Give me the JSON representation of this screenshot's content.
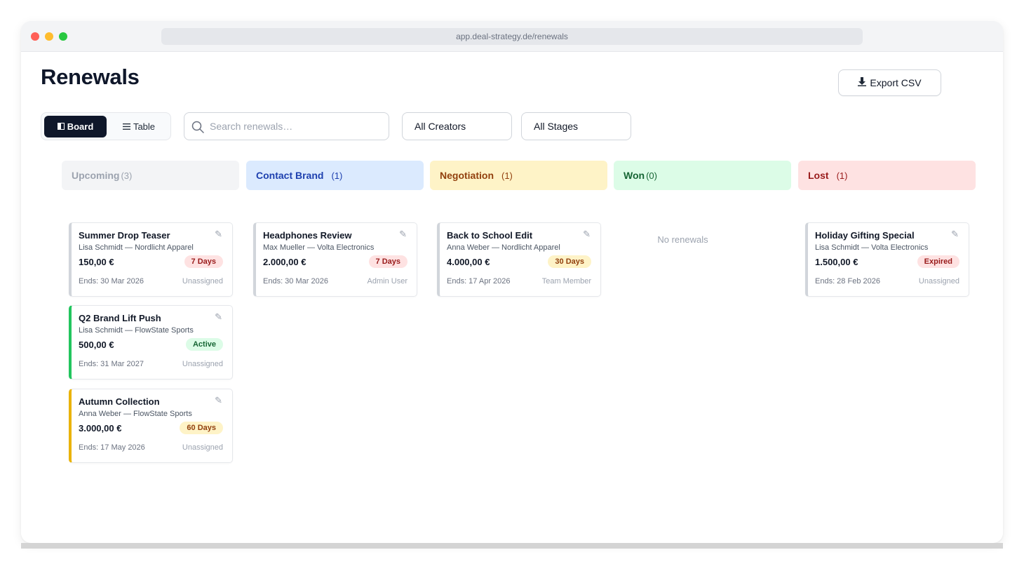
{
  "browser": {
    "url": "app.deal-strategy.de/renewals"
  },
  "header": {
    "title": "Renewals",
    "export_label": "Export CSV",
    "export_icon": "download-icon"
  },
  "view_toggle": {
    "board_label": "Board",
    "table_label": "Table",
    "active": "board"
  },
  "search": {
    "placeholder": "Search renewals…",
    "value": ""
  },
  "filters": {
    "creators": "All Creators",
    "stages": "All Stages"
  },
  "columns": [
    {
      "name": "Upcoming",
      "count": "(3)",
      "bg": "#f3f4f6",
      "color": "#9ca3af"
    },
    {
      "name": "Contact Brand",
      "count": "(1)",
      "bg": "#dbeafe",
      "color": "#1e40af"
    },
    {
      "name": "Negotiation",
      "count": "(1)",
      "bg": "#fef3c7",
      "color": "#92400e"
    },
    {
      "name": "Won",
      "count": "(0)",
      "bg": "#dcfce7",
      "color": "#166534",
      "empty_text": "No renewals"
    },
    {
      "name": "Lost",
      "count": "(1)",
      "bg": "#fee2e2",
      "color": "#991b1b"
    }
  ],
  "cards": [
    {
      "column": 0,
      "title": "Summer Drop Teaser",
      "sub": "Lisa Schmidt — Nordlicht Apparel",
      "amount": "150,00 €",
      "badge": "7 Days",
      "badge_bg": "#fee2e2",
      "badge_color": "#991b1b",
      "ends": "Ends: 30 Mar 2026",
      "assignee": "Unassigned",
      "accent": "#d1d5db"
    },
    {
      "column": 0,
      "title": "Q2 Brand Lift Push",
      "sub": "Lisa Schmidt — FlowState Sports",
      "amount": "500,00 €",
      "badge": "Active",
      "badge_bg": "#dcfce7",
      "badge_color": "#166534",
      "ends": "Ends: 31 Mar 2027",
      "assignee": "Unassigned",
      "accent": "#22c55e"
    },
    {
      "column": 0,
      "title": "Autumn Collection",
      "sub": "Anna Weber — FlowState Sports",
      "amount": "3.000,00 €",
      "badge": "60 Days",
      "badge_bg": "#fef3c7",
      "badge_color": "#92400e",
      "ends": "Ends: 17 May 2026",
      "assignee": "Unassigned",
      "accent": "#eab308"
    },
    {
      "column": 1,
      "title": "Headphones Review",
      "sub": "Max Mueller — Volta Electronics",
      "amount": "2.000,00 €",
      "badge": "7 Days",
      "badge_bg": "#fee2e2",
      "badge_color": "#991b1b",
      "ends": "Ends: 30 Mar 2026",
      "assignee": "Admin User",
      "accent": "#d1d5db"
    },
    {
      "column": 2,
      "title": "Back to School Edit",
      "sub": "Anna Weber — Nordlicht Apparel",
      "amount": "4.000,00 €",
      "badge": "30 Days",
      "badge_bg": "#fef3c7",
      "badge_color": "#92400e",
      "ends": "Ends: 17 Apr 2026",
      "assignee": "Team Member",
      "accent": "#d1d5db"
    },
    {
      "column": 4,
      "title": "Holiday Gifting Special",
      "sub": "Lisa Schmidt — Volta Electronics",
      "amount": "1.500,00 €",
      "badge": "Expired",
      "badge_bg": "#fee2e2",
      "badge_color": "#991b1b",
      "ends": "Ends: 28 Feb 2026",
      "assignee": "Unassigned",
      "accent": "#d1d5db"
    }
  ]
}
